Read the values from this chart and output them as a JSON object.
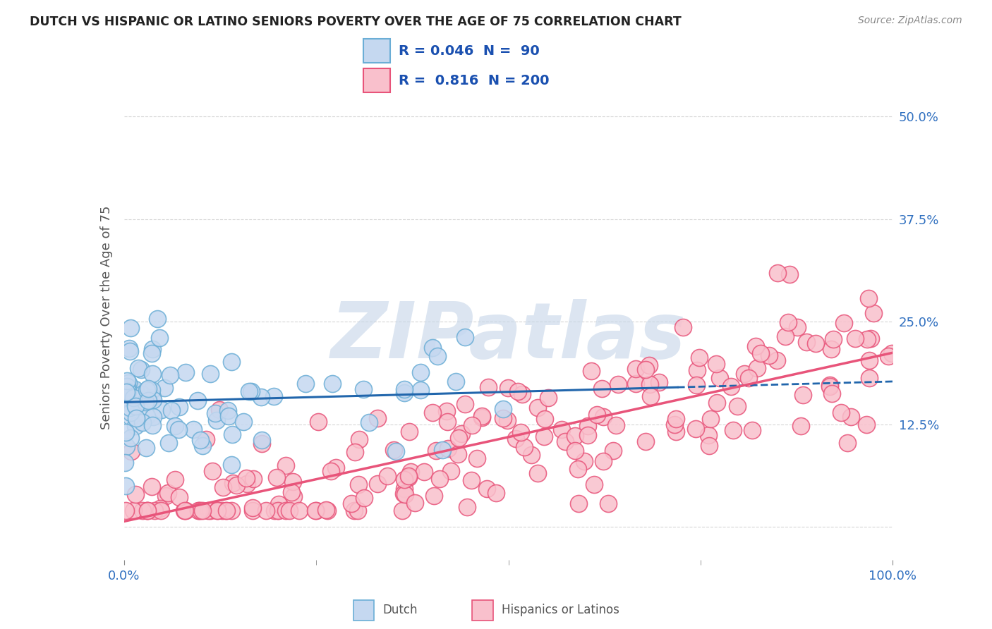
{
  "title": "DUTCH VS HISPANIC OR LATINO SENIORS POVERTY OVER THE AGE OF 75 CORRELATION CHART",
  "source": "Source: ZipAtlas.com",
  "ylabel": "Seniors Poverty Over the Age of 75",
  "watermark": "ZIPatlas",
  "xlim": [
    0,
    1
  ],
  "ylim": [
    -0.04,
    0.55
  ],
  "yticks": [
    0.0,
    0.125,
    0.25,
    0.375,
    0.5
  ],
  "ytick_labels": [
    "",
    "12.5%",
    "25.0%",
    "37.5%",
    "50.0%"
  ],
  "xticks": [
    0.0,
    1.0
  ],
  "xtick_labels": [
    "0.0%",
    "100.0%"
  ],
  "dutch_R": 0.046,
  "dutch_N": 90,
  "hispanic_R": 0.816,
  "hispanic_N": 200,
  "dutch_fill_color": "#c5d8f0",
  "dutch_edge_color": "#6baed6",
  "hispanic_fill_color": "#f9c0cc",
  "hispanic_edge_color": "#e8547a",
  "dutch_line_color": "#2166ac",
  "hispanic_line_color": "#e8547a",
  "background_color": "#ffffff",
  "grid_color": "#cccccc",
  "title_color": "#222222",
  "label_color": "#555555",
  "watermark_color": "#c5d5e8",
  "tick_label_color": "#3070c0",
  "legend_text_color": "#1a50b0"
}
